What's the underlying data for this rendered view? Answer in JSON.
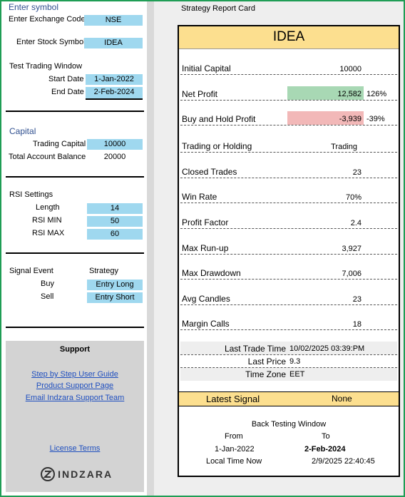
{
  "left": {
    "enter_symbol": "Enter symbol",
    "exchange_label": "Enter Exchange Code",
    "exchange_value": "NSE",
    "stock_label": "Enter Stock Symbol",
    "stock_value": "IDEA",
    "test_window": "Test Trading Window",
    "start_label": "Start Date",
    "start_value": "1-Jan-2022",
    "end_label": "End Date",
    "end_value": "2-Feb-2024",
    "capital_head": "Capital",
    "trading_capital_label": "Trading Capital",
    "trading_capital_value": "10000",
    "total_balance_label": "Total Account Balance",
    "total_balance_value": "20000",
    "rsi_head": "RSI Settings",
    "length_label": "Length",
    "length_value": "14",
    "rsi_min_label": "RSI MIN",
    "rsi_min_value": "50",
    "rsi_max_label": "RSI MAX",
    "rsi_max_value": "60",
    "signal_event": "Signal Event",
    "strategy": "Strategy",
    "buy_label": "Buy",
    "buy_value": "Entry Long",
    "sell_label": "Sell",
    "sell_value": "Entry Short"
  },
  "support": {
    "title": "Support",
    "guide": "Step by Step User Guide",
    "product": "Product Support Page",
    "email": "Email Indzara Support Team",
    "license": "License Terms",
    "logo": "INDZARA"
  },
  "report": {
    "title": "Strategy Report Card",
    "symbol": "IDEA",
    "rows": [
      {
        "label": "Initial Capital",
        "value": "10000"
      },
      {
        "label": "Net Profit",
        "value": "12,582",
        "pct": "126%"
      },
      {
        "label": "Buy and Hold Profit",
        "value": "-3,939",
        "pct": "-39%"
      },
      {
        "label": "Trading or Holding",
        "value": "Trading"
      },
      {
        "label": "Closed Trades",
        "value": "23"
      },
      {
        "label": "Win Rate",
        "value": "70%"
      },
      {
        "label": "Profit Factor",
        "value": "2.4"
      },
      {
        "label": "Max Run-up",
        "value": "3,927"
      },
      {
        "label": "Max Drawdown",
        "value": "7,006"
      },
      {
        "label": "Avg Candles",
        "value": "23"
      },
      {
        "label": "Margin Calls",
        "value": "18"
      }
    ],
    "last_trade_label": "Last Trade Time",
    "last_trade_value": "10/02/2025 03:39:PM",
    "last_price_label": "Last Price",
    "last_price_value": "9.3",
    "tz_label": "Time Zone",
    "tz_value": "EET",
    "latest_signal_label": "Latest Signal",
    "latest_signal_value": "None",
    "bt_title": "Back Testing Window",
    "from_label": "From",
    "to_label": "To",
    "from_value": "1-Jan-2022",
    "to_value": "2-Feb-2024",
    "local_label": "Local Time Now",
    "local_value": "2/9/2025 22:40:45"
  },
  "colors": {
    "input_blue": "#9fd8ef",
    "header_yellow": "#fcdf8f",
    "profit_green": "#a8d8b4",
    "loss_red": "#f2b8b8",
    "frame_green": "#1f9d55"
  }
}
